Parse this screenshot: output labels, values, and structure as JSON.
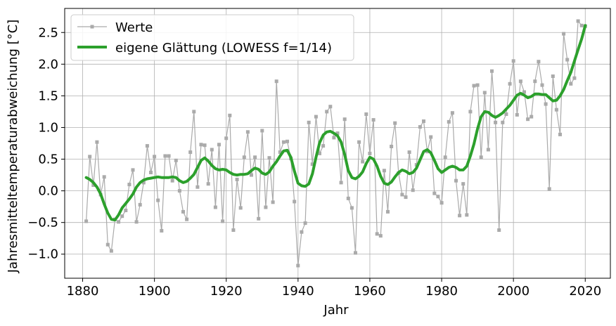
{
  "chart_data": {
    "type": "line",
    "xlabel": "Jahr",
    "ylabel": "Jahresmitteltemperaturabweichung [°C]",
    "xlim": [
      1875,
      2027
    ],
    "ylim": [
      -1.38,
      2.88
    ],
    "xticks": [
      1880,
      1900,
      1920,
      1940,
      1960,
      1980,
      2000,
      2020
    ],
    "yticks": [
      -1.0,
      -0.5,
      0.0,
      0.5,
      1.0,
      1.5,
      2.0,
      2.5
    ],
    "grid": true,
    "legend_position": "upper-left",
    "series": [
      {
        "name": "Werte",
        "color": "#aaaaaa",
        "marker": "square",
        "x": [
          1881,
          1882,
          1883,
          1884,
          1885,
          1886,
          1887,
          1888,
          1889,
          1890,
          1891,
          1892,
          1893,
          1894,
          1895,
          1896,
          1897,
          1898,
          1899,
          1900,
          1901,
          1902,
          1903,
          1904,
          1905,
          1906,
          1907,
          1908,
          1909,
          1910,
          1911,
          1912,
          1913,
          1914,
          1915,
          1916,
          1917,
          1918,
          1919,
          1920,
          1921,
          1922,
          1923,
          1924,
          1925,
          1926,
          1927,
          1928,
          1929,
          1930,
          1931,
          1932,
          1933,
          1934,
          1935,
          1936,
          1937,
          1938,
          1939,
          1940,
          1941,
          1942,
          1943,
          1944,
          1945,
          1946,
          1947,
          1948,
          1949,
          1950,
          1951,
          1952,
          1953,
          1954,
          1955,
          1956,
          1957,
          1958,
          1959,
          1960,
          1961,
          1962,
          1963,
          1964,
          1965,
          1966,
          1967,
          1968,
          1969,
          1970,
          1971,
          1972,
          1973,
          1974,
          1975,
          1976,
          1977,
          1978,
          1979,
          1980,
          1981,
          1982,
          1983,
          1984,
          1985,
          1986,
          1987,
          1988,
          1989,
          1990,
          1991,
          1992,
          1993,
          1994,
          1995,
          1996,
          1997,
          1998,
          1999,
          2000,
          2001,
          2002,
          2003,
          2004,
          2005,
          2006,
          2007,
          2008,
          2009,
          2010,
          2011,
          2012,
          2013,
          2014,
          2015,
          2016,
          2017,
          2018,
          2019,
          2020
        ],
        "values": [
          -0.48,
          0.54,
          0.09,
          0.77,
          -0.06,
          0.22,
          -0.85,
          -0.95,
          -0.45,
          -0.49,
          -0.4,
          -0.31,
          0.1,
          0.33,
          -0.49,
          -0.22,
          0.13,
          0.71,
          0.29,
          0.54,
          -0.15,
          -0.63,
          0.55,
          0.55,
          0.16,
          0.48,
          0.0,
          -0.33,
          -0.45,
          0.61,
          1.25,
          0.06,
          0.73,
          0.72,
          0.11,
          0.65,
          -0.26,
          0.73,
          -0.48,
          0.83,
          1.19,
          -0.62,
          0.18,
          -0.27,
          0.53,
          0.93,
          0.25,
          0.53,
          -0.44,
          0.95,
          -0.26,
          0.52,
          -0.18,
          1.73,
          0.61,
          0.77,
          0.78,
          0.51,
          -0.17,
          -1.18,
          -0.65,
          -0.51,
          1.08,
          0.42,
          1.17,
          0.59,
          0.71,
          1.25,
          1.33,
          0.84,
          0.91,
          0.13,
          1.13,
          -0.12,
          -0.27,
          -0.98,
          0.77,
          0.46,
          1.21,
          0.59,
          1.12,
          -0.68,
          -0.71,
          0.32,
          -0.33,
          0.7,
          1.07,
          0.28,
          -0.06,
          -0.1,
          0.61,
          0.01,
          0.41,
          1.01,
          1.1,
          0.62,
          0.85,
          -0.04,
          -0.09,
          -0.19,
          0.53,
          1.09,
          1.23,
          0.16,
          -0.39,
          0.11,
          -0.38,
          1.25,
          1.66,
          1.67,
          0.53,
          1.55,
          0.65,
          1.89,
          1.08,
          -0.62,
          1.08,
          1.21,
          1.69,
          2.05,
          1.2,
          1.73,
          1.56,
          1.13,
          1.17,
          1.73,
          2.04,
          1.67,
          1.37,
          0.03,
          1.81,
          1.28,
          0.89,
          2.48,
          2.07,
          1.69,
          1.78,
          2.68,
          2.61,
          2.6
        ]
      },
      {
        "name": "eigene Glättung (LOWESS f=1/14)",
        "color": "#2ca02c",
        "x": [
          1881,
          1882,
          1883,
          1884,
          1885,
          1886,
          1887,
          1888,
          1889,
          1890,
          1891,
          1892,
          1893,
          1894,
          1895,
          1896,
          1897,
          1898,
          1899,
          1900,
          1901,
          1902,
          1903,
          1904,
          1905,
          1906,
          1907,
          1908,
          1909,
          1910,
          1911,
          1912,
          1913,
          1914,
          1915,
          1916,
          1917,
          1918,
          1919,
          1920,
          1921,
          1922,
          1923,
          1924,
          1925,
          1926,
          1927,
          1928,
          1929,
          1930,
          1931,
          1932,
          1933,
          1934,
          1935,
          1936,
          1937,
          1938,
          1939,
          1940,
          1941,
          1942,
          1943,
          1944,
          1945,
          1946,
          1947,
          1948,
          1949,
          1950,
          1951,
          1952,
          1953,
          1954,
          1955,
          1956,
          1957,
          1958,
          1959,
          1960,
          1961,
          1962,
          1963,
          1964,
          1965,
          1966,
          1967,
          1968,
          1969,
          1970,
          1971,
          1972,
          1973,
          1974,
          1975,
          1976,
          1977,
          1978,
          1979,
          1980,
          1981,
          1982,
          1983,
          1984,
          1985,
          1986,
          1987,
          1988,
          1989,
          1990,
          1991,
          1992,
          1993,
          1994,
          1995,
          1996,
          1997,
          1998,
          1999,
          2000,
          2001,
          2002,
          2003,
          2004,
          2005,
          2006,
          2007,
          2008,
          2009,
          2010,
          2011,
          2012,
          2013,
          2014,
          2015,
          2016,
          2017,
          2018,
          2019,
          2020
        ],
        "values": [
          0.21,
          0.18,
          0.13,
          0.06,
          -0.05,
          -0.21,
          -0.35,
          -0.45,
          -0.46,
          -0.38,
          -0.27,
          -0.2,
          -0.13,
          -0.05,
          0.06,
          0.13,
          0.17,
          0.19,
          0.2,
          0.21,
          0.22,
          0.21,
          0.21,
          0.21,
          0.22,
          0.21,
          0.16,
          0.13,
          0.15,
          0.2,
          0.26,
          0.37,
          0.48,
          0.52,
          0.47,
          0.4,
          0.35,
          0.33,
          0.34,
          0.33,
          0.29,
          0.26,
          0.25,
          0.26,
          0.26,
          0.27,
          0.32,
          0.36,
          0.34,
          0.28,
          0.26,
          0.3,
          0.39,
          0.46,
          0.55,
          0.63,
          0.64,
          0.53,
          0.31,
          0.12,
          0.08,
          0.07,
          0.11,
          0.27,
          0.53,
          0.76,
          0.88,
          0.93,
          0.94,
          0.91,
          0.87,
          0.77,
          0.57,
          0.32,
          0.21,
          0.19,
          0.23,
          0.3,
          0.43,
          0.53,
          0.5,
          0.39,
          0.23,
          0.12,
          0.1,
          0.14,
          0.22,
          0.29,
          0.33,
          0.31,
          0.27,
          0.29,
          0.36,
          0.49,
          0.62,
          0.65,
          0.6,
          0.48,
          0.35,
          0.29,
          0.33,
          0.37,
          0.39,
          0.37,
          0.33,
          0.33,
          0.39,
          0.55,
          0.74,
          0.98,
          1.17,
          1.25,
          1.24,
          1.19,
          1.16,
          1.19,
          1.23,
          1.29,
          1.35,
          1.43,
          1.51,
          1.54,
          1.51,
          1.47,
          1.49,
          1.53,
          1.53,
          1.52,
          1.52,
          1.47,
          1.42,
          1.43,
          1.5,
          1.6,
          1.74,
          1.87,
          2.05,
          2.23,
          2.4,
          2.61
        ]
      }
    ]
  }
}
